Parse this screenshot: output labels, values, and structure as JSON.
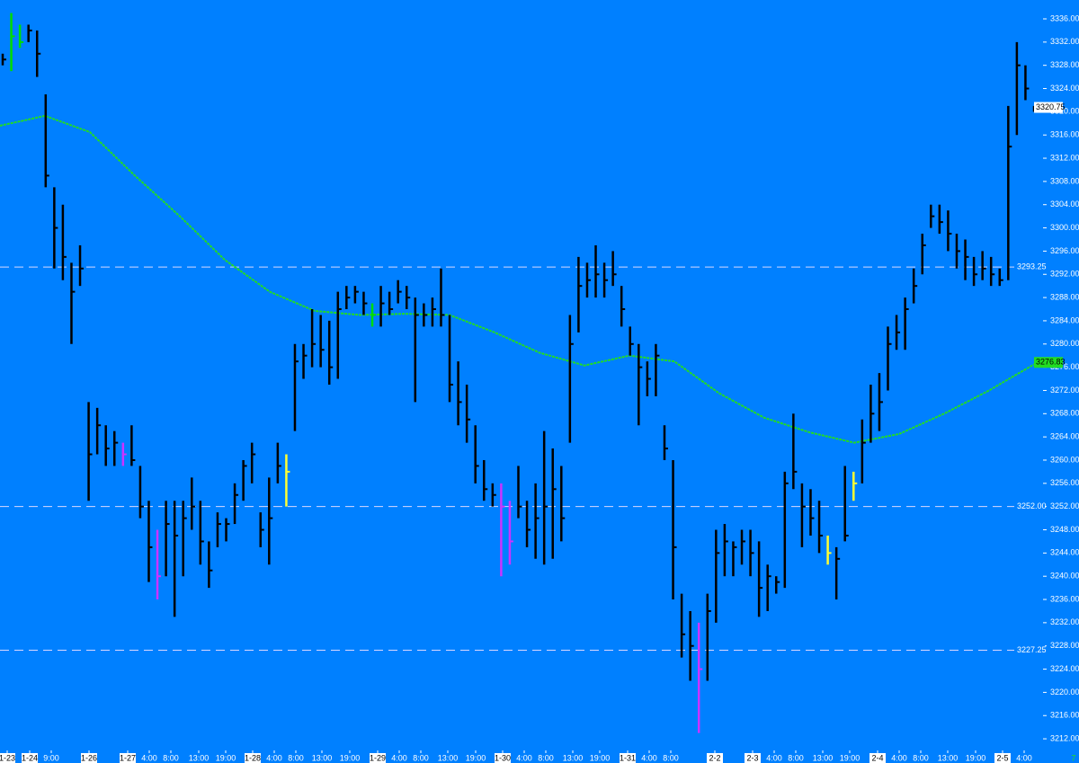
{
  "chart_data": {
    "type": "ohlc",
    "ylim": [
      3210,
      3339.25
    ],
    "yticks": [
      {
        "value": 3212,
        "label": "3212.00"
      },
      {
        "value": 3216,
        "label": "3216.00"
      },
      {
        "value": 3220,
        "label": "3220.00"
      },
      {
        "value": 3224,
        "label": "3224.00"
      },
      {
        "value": 3228,
        "label": "3228.00"
      },
      {
        "value": 3232,
        "label": "3232.00"
      },
      {
        "value": 3236,
        "label": "3236.00"
      },
      {
        "value": 3240,
        "label": "3240.00"
      },
      {
        "value": 3244,
        "label": "3244.00"
      },
      {
        "value": 3248,
        "label": "3248.00"
      },
      {
        "value": 3252,
        "label": "3252.00"
      },
      {
        "value": 3256,
        "label": "3256.00"
      },
      {
        "value": 3260,
        "label": "3260.00"
      },
      {
        "value": 3264,
        "label": "3264.00"
      },
      {
        "value": 3268,
        "label": "3268.00"
      },
      {
        "value": 3272,
        "label": "3272.00"
      },
      {
        "value": 3276,
        "label": "3276.00"
      },
      {
        "value": 3280,
        "label": "3280.00"
      },
      {
        "value": 3284,
        "label": "3284.00"
      },
      {
        "value": 3288,
        "label": "3288.00"
      },
      {
        "value": 3292,
        "label": "3292.00"
      },
      {
        "value": 3296,
        "label": "3296.00"
      },
      {
        "value": 3300,
        "label": "3300.00"
      },
      {
        "value": 3304,
        "label": "3304.00"
      },
      {
        "value": 3308,
        "label": "3308.00"
      },
      {
        "value": 3312,
        "label": "3312.00"
      },
      {
        "value": 3316,
        "label": "3316.00"
      },
      {
        "value": 3320,
        "label": "3320.00"
      },
      {
        "value": 3324,
        "label": "3324.00"
      },
      {
        "value": 3328,
        "label": "3328.00"
      },
      {
        "value": 3332,
        "label": "3332.00"
      },
      {
        "value": 3336,
        "label": "3336.00"
      }
    ],
    "x_labels": [
      "1-23",
      "1-24",
      "9:00",
      "1-26",
      "1-27",
      "4:00",
      "8:00",
      "13:00",
      "19:00",
      "1-28",
      "4:00",
      "8:00",
      "13:00",
      "19:00",
      "1-29",
      "4:00",
      "8:00",
      "13:00",
      "19:00",
      "1-30",
      "4:00",
      "8:00",
      "13:00",
      "19:00",
      "1-31",
      "4:00",
      "8:00",
      "2-2",
      "2-3",
      "4:00",
      "8:00",
      "13:00",
      "19:00",
      "2-4",
      "4:00",
      "8:00",
      "13:00",
      "19:00",
      "2-5",
      "4:00"
    ],
    "bars": [
      [
        3330,
        3328,
        3329
      ],
      [
        3337,
        3327,
        3333
      ],
      [
        3335,
        3331,
        3332
      ],
      [
        3335,
        3332,
        3334
      ],
      [
        3334,
        3326,
        3330
      ],
      [
        3323,
        3307,
        3309
      ],
      [
        3307,
        3293,
        3300
      ],
      [
        3304,
        3291,
        3295
      ],
      [
        3294,
        3280,
        3289
      ],
      [
        3297,
        3290,
        3293
      ],
      [
        3270,
        3253,
        3261
      ],
      [
        3269,
        3261,
        3266
      ],
      [
        3266,
        3259,
        3262
      ],
      [
        3265,
        3259,
        3263
      ],
      [
        3263,
        3259,
        3261
      ],
      [
        3266,
        3259,
        3260
      ],
      [
        3259,
        3250,
        3252
      ],
      [
        3253,
        3239,
        3245
      ],
      [
        3248,
        3236,
        3240
      ],
      [
        3253,
        3240,
        3249
      ],
      [
        3253,
        3233,
        3247
      ],
      [
        3253,
        3240,
        3250
      ],
      [
        3257,
        3248,
        3252
      ],
      [
        3253,
        3242,
        3246
      ],
      [
        3246,
        3238,
        3241
      ],
      [
        3251,
        3245,
        3249
      ],
      [
        3250,
        3246,
        3249
      ],
      [
        3256,
        3249,
        3254
      ],
      [
        3260,
        3253,
        3259
      ],
      [
        3263,
        3256,
        3261
      ],
      [
        3251,
        3245,
        3248
      ],
      [
        3257,
        3242,
        3250
      ],
      [
        3263,
        3256,
        3259
      ],
      [
        3261,
        3252,
        3258
      ],
      [
        3280,
        3265,
        3277
      ],
      [
        3280,
        3274,
        3278
      ],
      [
        3286,
        3276,
        3280
      ],
      [
        3285,
        3276,
        3279
      ],
      [
        3284,
        3273,
        3276
      ],
      [
        3289,
        3274,
        3286
      ],
      [
        3290,
        3286,
        3288
      ],
      [
        3290,
        3287,
        3289
      ],
      [
        3289,
        3285,
        3287
      ],
      [
        3287,
        3283,
        3285
      ],
      [
        3290,
        3283,
        3287
      ],
      [
        3289,
        3285,
        3286
      ],
      [
        3291,
        3287,
        3289
      ],
      [
        3290,
        3286,
        3288
      ],
      [
        3288,
        3270,
        3285
      ],
      [
        3287,
        3283,
        3285
      ],
      [
        3288,
        3283,
        3286
      ],
      [
        3293,
        3283,
        3285
      ],
      [
        3285,
        3270,
        3273
      ],
      [
        3277,
        3266,
        3270
      ],
      [
        3273,
        3263,
        3267
      ],
      [
        3266,
        3256,
        3259
      ],
      [
        3260,
        3253,
        3255
      ],
      [
        3256,
        3252,
        3254
      ],
      [
        3256,
        3240,
        3252
      ],
      [
        3253,
        3242,
        3246
      ],
      [
        3259,
        3250,
        3252
      ],
      [
        3253,
        3245,
        3248
      ],
      [
        3256,
        3243,
        3250
      ],
      [
        3265,
        3242,
        3252
      ],
      [
        3262,
        3243,
        3255
      ],
      [
        3259,
        3246,
        3250
      ],
      [
        3285,
        3263,
        3280
      ],
      [
        3295,
        3282,
        3290
      ],
      [
        3294,
        3288,
        3291
      ],
      [
        3297,
        3288,
        3292
      ],
      [
        3294,
        3288,
        3291
      ],
      [
        3296,
        3290,
        3292
      ],
      [
        3290,
        3283,
        3286
      ],
      [
        3283,
        3278,
        3280
      ],
      [
        3280,
        3266,
        3276
      ],
      [
        3277,
        3271,
        3274
      ],
      [
        3280,
        3271,
        3278
      ],
      [
        3266,
        3260,
        3262
      ],
      [
        3260,
        3236,
        3245
      ],
      [
        3237,
        3226,
        3230
      ],
      [
        3234,
        3222,
        3228
      ],
      [
        3232,
        3213,
        3224
      ],
      [
        3237,
        3222,
        3234
      ],
      [
        3248,
        3232,
        3244
      ],
      [
        3249,
        3240,
        3246
      ],
      [
        3246,
        3240,
        3245
      ],
      [
        3248,
        3242,
        3246
      ],
      [
        3248,
        3240,
        3244
      ],
      [
        3246,
        3233,
        3238
      ],
      [
        3242,
        3234,
        3240
      ],
      [
        3240,
        3237,
        3239
      ],
      [
        3258,
        3238,
        3256
      ],
      [
        3268,
        3255,
        3258
      ],
      [
        3256,
        3245,
        3252
      ],
      [
        3255,
        3247,
        3250
      ],
      [
        3253,
        3244,
        3247
      ],
      [
        3247,
        3242,
        3244
      ],
      [
        3245,
        3236,
        3243
      ],
      [
        3259,
        3246,
        3247
      ],
      [
        3258,
        3253,
        3256
      ],
      [
        3267,
        3256,
        3263
      ],
      [
        3273,
        3263,
        3268
      ],
      [
        3275,
        3265,
        3270
      ],
      [
        3283,
        3272,
        3280
      ],
      [
        3285,
        3279,
        3282
      ],
      [
        3288,
        3279,
        3286
      ],
      [
        3293,
        3287,
        3290
      ],
      [
        3299,
        3292,
        3297
      ],
      [
        3304,
        3300,
        3302
      ],
      [
        3304,
        3299,
        3301
      ],
      [
        3303,
        3296,
        3299
      ],
      [
        3299,
        3293,
        3296
      ],
      [
        3298,
        3291,
        3295
      ],
      [
        3295,
        3290,
        3292
      ],
      [
        3296,
        3291,
        3293
      ],
      [
        3295,
        3290,
        3292
      ],
      [
        3293,
        3290,
        3291
      ],
      [
        3321,
        3291,
        3314
      ],
      [
        3332,
        3316,
        3328
      ],
      [
        3328,
        3322,
        3324
      ],
      [
        3321,
        3320,
        3320.75
      ]
    ],
    "bar_colors": [
      "#000000",
      "#00dd00",
      "#00dd00",
      "#000000",
      "#000000",
      "#000000",
      "#000000",
      "#000000",
      "#000000",
      "#000000",
      "#000000",
      "#000000",
      "#000000",
      "#000000",
      "#cc33ff",
      "#000000",
      "#000000",
      "#000000",
      "#cc33ff",
      "#000000",
      "#000000",
      "#000000",
      "#000000",
      "#000000",
      "#000000",
      "#000000",
      "#000000",
      "#000000",
      "#000000",
      "#000000",
      "#000000",
      "#000000",
      "#000000",
      "#ffff33",
      "#000000",
      "#000000",
      "#000000",
      "#000000",
      "#000000",
      "#000000",
      "#000000",
      "#000000",
      "#000000",
      "#00dd00",
      "#000000",
      "#000000",
      "#000000",
      "#000000",
      "#000000",
      "#000000",
      "#000000",
      "#000000",
      "#000000",
      "#000000",
      "#000000",
      "#000000",
      "#000000",
      "#000000",
      "#cc33ff",
      "#cc33ff",
      "#000000",
      "#000000",
      "#000000",
      "#000000",
      "#000000",
      "#000000",
      "#000000",
      "#000000",
      "#000000",
      "#000000",
      "#000000",
      "#000000",
      "#000000",
      "#000000",
      "#000000",
      "#000000",
      "#000000",
      "#000000",
      "#000000",
      "#000000",
      "#000000",
      "#cc33ff",
      "#000000",
      "#000000",
      "#000000",
      "#000000",
      "#000000",
      "#000000",
      "#000000",
      "#000000",
      "#000000",
      "#000000",
      "#000000",
      "#000000",
      "#000000",
      "#000000",
      "#ffff33",
      "#000000",
      "#000000",
      "#ffff33",
      "#000000",
      "#000000",
      "#000000",
      "#000000",
      "#000000",
      "#000000",
      "#000000",
      "#000000",
      "#000000",
      "#000000",
      "#000000",
      "#000000",
      "#000000",
      "#000000",
      "#000000",
      "#000000",
      "#000000",
      "#000000",
      "#000000",
      "#000000",
      "#000000"
    ],
    "ma": {
      "color": "#22dd22",
      "values": [
        3317.6,
        3319.3,
        3316.5,
        3309,
        3302,
        3294.5,
        3289,
        3285.7,
        3285,
        3285.2,
        3285,
        3282,
        3278.5,
        3276.3,
        3278,
        3277,
        3271.5,
        3267.3,
        3264.8,
        3263,
        3264.5,
        3268,
        3272,
        3276.5
      ],
      "label": 3276.83
    },
    "levels": [
      {
        "value": 3293.25,
        "label": "3293.25"
      },
      {
        "value": 3252,
        "label": "3252.00"
      },
      {
        "value": 3227.25,
        "label": "3227.25"
      }
    ],
    "last_price": 3320.75,
    "corner_label": "7"
  }
}
